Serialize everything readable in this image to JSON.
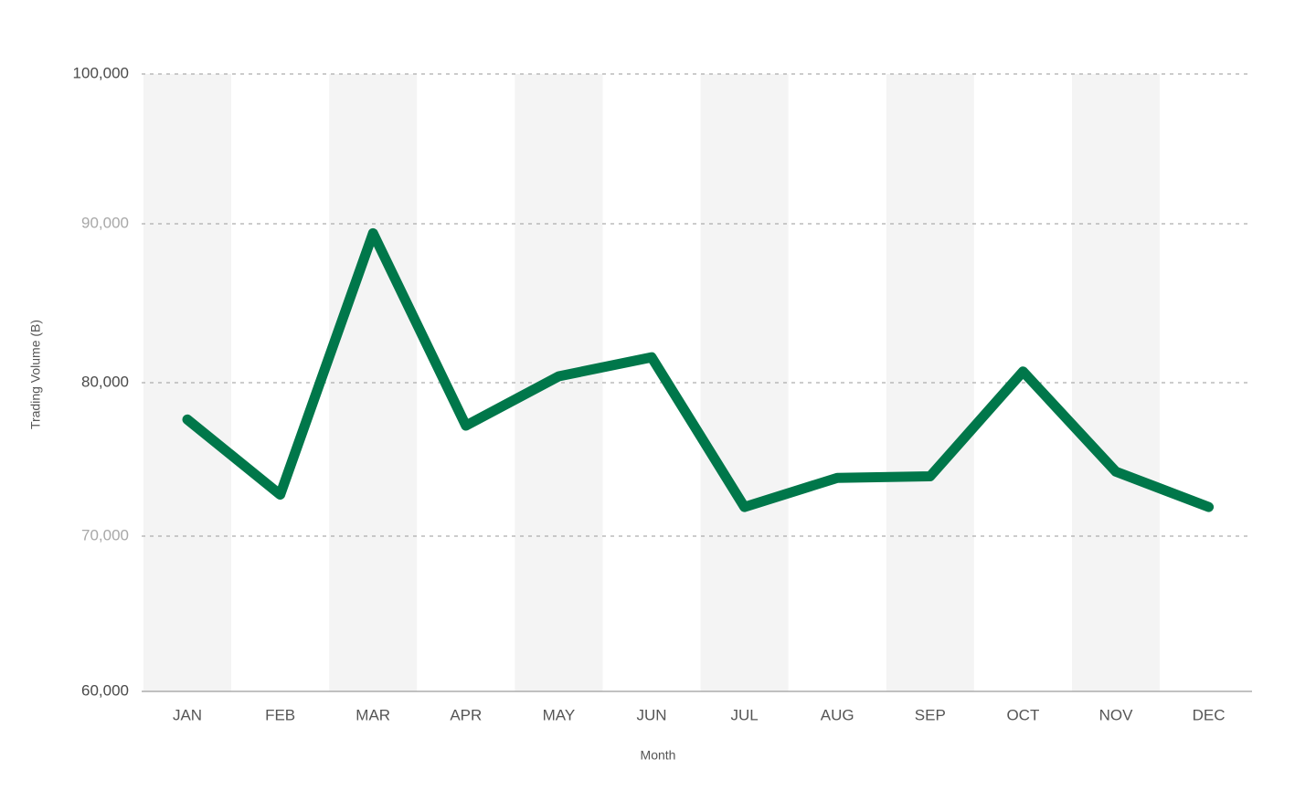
{
  "chart_data": {
    "type": "line",
    "title": "",
    "xlabel": "Month",
    "ylabel": "Trading Volume (B)",
    "categories": [
      "JAN",
      "FEB",
      "MAR",
      "APR",
      "MAY",
      "JUN",
      "JUL",
      "AUG",
      "SEP",
      "OCT",
      "NOV",
      "DEC"
    ],
    "series": [
      {
        "name": "",
        "color": "#00774a",
        "values": [
          77600,
          72700,
          89400,
          77200,
          80400,
          81600,
          71900,
          73800,
          73900,
          80700,
          74200,
          71900
        ]
      }
    ],
    "ylim": [
      60000,
      100000
    ],
    "y_ticks": [
      {
        "value": 100000,
        "label": "100,000"
      },
      {
        "value": 90000,
        "label": "90,000"
      },
      {
        "value": 80000,
        "label": "80,000"
      },
      {
        "value": 70000,
        "label": "70,000"
      },
      {
        "value": 60000,
        "label": "60,000"
      }
    ],
    "grid": true,
    "grid_style": "dashed",
    "alternating_column_bands": true,
    "band_color": "#f4f4f4",
    "legend": "none"
  }
}
